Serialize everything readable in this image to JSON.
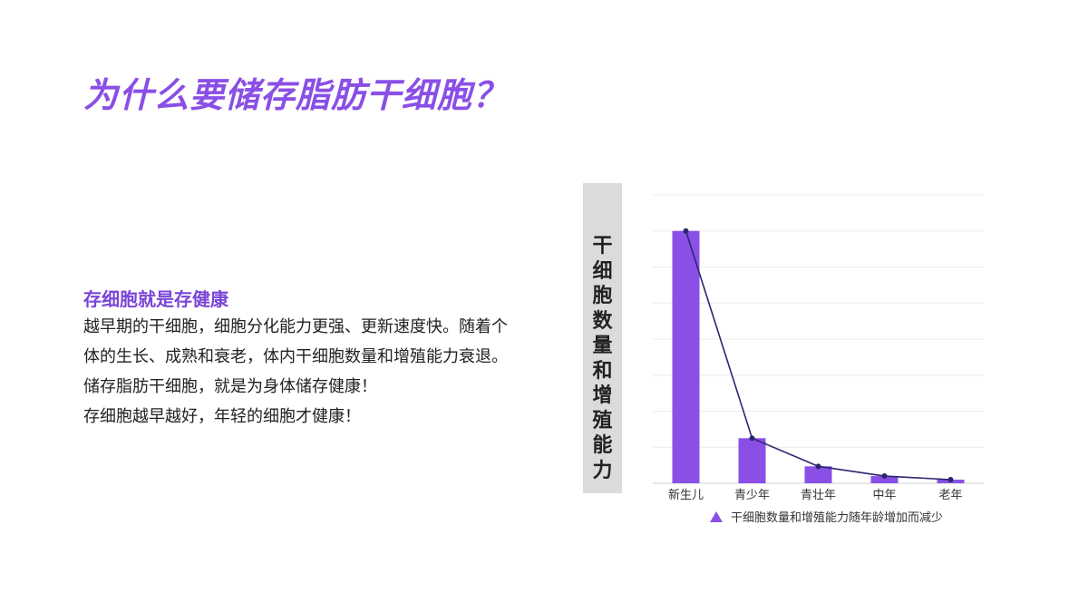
{
  "page": {
    "title": "为什么要储存脂肪干细胞？",
    "subtitle": "存细胞就是存健康",
    "paragraphs": [
      "越早期的干细胞，细胞分化能力更强、更新速度快。随着个体的生长、成熟和衰老，体内干细胞数量和增殖能力衰退。",
      "储存脂肪干细胞，就是为身体储存健康！",
      "存细胞越早越好，年轻的细胞才健康！"
    ]
  },
  "colors": {
    "accent": "#8a4fe6",
    "bar": "#8a4fe6",
    "line": "#2b2670",
    "grid": "#ececec"
  },
  "chart_data": {
    "type": "bar",
    "ylabel": "干细胞数量和增殖能力",
    "categories": [
      "新生儿",
      "青少年",
      "青壮年",
      "中年",
      "老年"
    ],
    "series": [
      {
        "name": "干细胞数量和增殖能力随年龄增加而减少",
        "values": [
          70,
          12.5,
          4.7,
          2,
          1
        ]
      }
    ],
    "trend_line": [
      70,
      12.5,
      4.7,
      2,
      1
    ],
    "ylim": [
      0,
      80
    ],
    "grid": true,
    "legend_position": "bottom"
  }
}
